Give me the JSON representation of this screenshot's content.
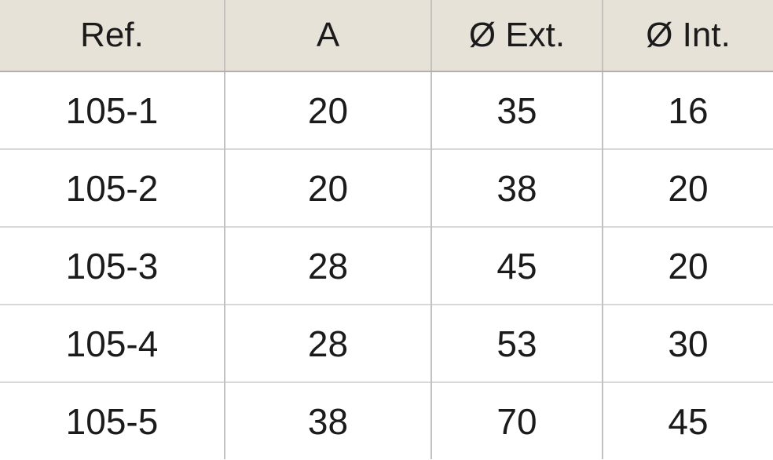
{
  "table": {
    "columns": [
      {
        "key": "ref",
        "label": "Ref."
      },
      {
        "key": "a",
        "label": "A"
      },
      {
        "key": "ext",
        "label": "Ø Ext."
      },
      {
        "key": "int",
        "label": "Ø Int."
      }
    ],
    "rows": [
      {
        "ref": "105-1",
        "a": "20",
        "ext": "35",
        "int": "16"
      },
      {
        "ref": "105-2",
        "a": "20",
        "ext": "38",
        "int": "20"
      },
      {
        "ref": "105-3",
        "a": "28",
        "ext": "45",
        "int": "20"
      },
      {
        "ref": "105-4",
        "a": "28",
        "ext": "53",
        "int": "30"
      },
      {
        "ref": "105-5",
        "a": "38",
        "ext": "70",
        "int": "45"
      }
    ]
  },
  "colors": {
    "header_bg": "#e7e2d7",
    "text": "#1b1b1b",
    "border_header_bottom": "#b2b0a9",
    "border_vertical": "#c1c1be",
    "border_row": "#d8d8d8",
    "page_bg": "#ffffff"
  }
}
